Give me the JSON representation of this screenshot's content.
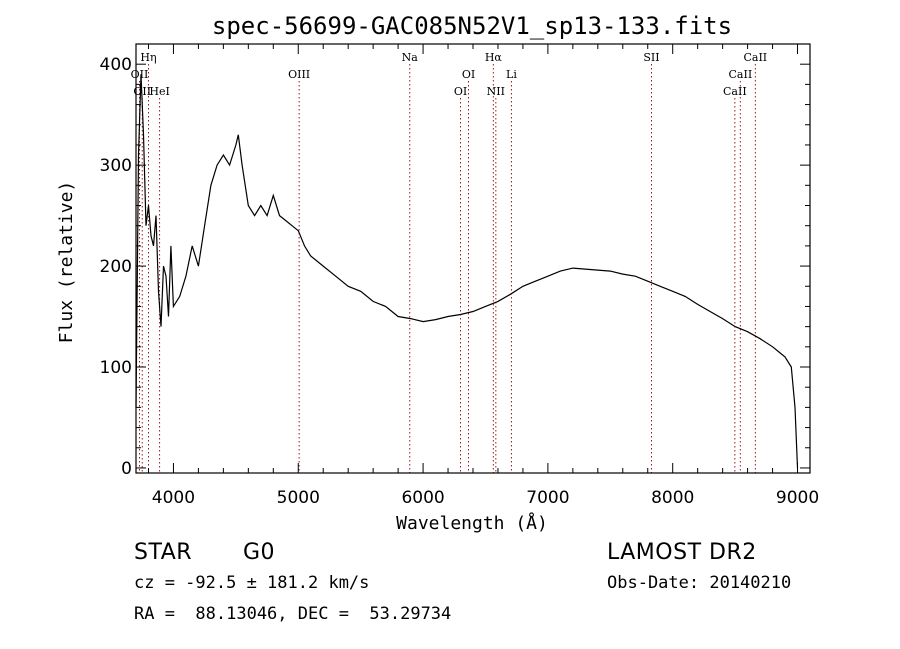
{
  "chart_data": {
    "type": "line",
    "title": "spec-56699-GAC085N52V1_sp13-133.fits",
    "xlabel": "Wavelength (Å)",
    "ylabel": "Flux (relative)",
    "xlim": [
      3700,
      9100
    ],
    "ylim": [
      -5,
      420
    ],
    "xticks": [
      4000,
      5000,
      6000,
      7000,
      8000,
      9000
    ],
    "yticks": [
      0,
      100,
      200,
      300,
      400
    ],
    "grid": false,
    "series": [
      {
        "x": [
          3700,
          3720,
          3740,
          3760,
          3780,
          3800,
          3820,
          3840,
          3860,
          3880,
          3900,
          3920,
          3940,
          3960,
          3980,
          4000,
          4050,
          4100,
          4150,
          4200,
          4250,
          4300,
          4350,
          4400,
          4450,
          4500,
          4520,
          4550,
          4600,
          4650,
          4700,
          4750,
          4800,
          4850,
          4900,
          4950,
          5000,
          5050,
          5100,
          5200,
          5300,
          5400,
          5500,
          5600,
          5700,
          5800,
          5900,
          6000,
          6100,
          6200,
          6300,
          6400,
          6500,
          6600,
          6700,
          6800,
          6900,
          7000,
          7100,
          7200,
          7300,
          7400,
          7500,
          7600,
          7700,
          7800,
          7900,
          8000,
          8100,
          8200,
          8300,
          8400,
          8500,
          8600,
          8700,
          8800,
          8850,
          8900,
          8950,
          8980,
          9000
        ],
        "y": [
          60,
          310,
          390,
          330,
          240,
          260,
          230,
          220,
          250,
          175,
          140,
          200,
          190,
          150,
          220,
          160,
          170,
          190,
          220,
          200,
          240,
          280,
          300,
          310,
          300,
          320,
          330,
          300,
          260,
          250,
          260,
          250,
          270,
          250,
          245,
          240,
          235,
          220,
          210,
          200,
          190,
          180,
          175,
          165,
          160,
          150,
          148,
          145,
          147,
          150,
          152,
          155,
          160,
          165,
          172,
          180,
          185,
          190,
          195,
          198,
          197,
          196,
          195,
          192,
          190,
          185,
          180,
          175,
          170,
          162,
          155,
          148,
          140,
          135,
          128,
          120,
          115,
          110,
          100,
          60,
          0
        ]
      }
    ],
    "line_labels": [
      {
        "x": 3728,
        "text": "OII",
        "row": 2
      },
      {
        "x": 3750,
        "text": "OII",
        "row": 3
      },
      {
        "x": 3800,
        "text": "Hη",
        "row": 1
      },
      {
        "x": 3889,
        "text": "HeI",
        "row": 3
      },
      {
        "x": 5007,
        "text": "OIII",
        "row": 2
      },
      {
        "x": 5893,
        "text": "Na",
        "row": 1
      },
      {
        "x": 6300,
        "text": "OI",
        "row": 3
      },
      {
        "x": 6364,
        "text": "OI",
        "row": 2
      },
      {
        "x": 6563,
        "text": "Hα",
        "row": 1
      },
      {
        "x": 6583,
        "text": "NII",
        "row": 3
      },
      {
        "x": 6708,
        "text": "Li",
        "row": 2
      },
      {
        "x": 7830,
        "text": "SII",
        "row": 1
      },
      {
        "x": 8498,
        "text": "CaII",
        "row": 3
      },
      {
        "x": 8542,
        "text": "CaII",
        "row": 2
      },
      {
        "x": 8662,
        "text": "CaII",
        "row": 1
      }
    ]
  },
  "info": {
    "object_class": "STAR",
    "subclass": "G0",
    "survey": "LAMOST DR2",
    "cz": "cz = -92.5 ± 181.2 km/s",
    "obs_date": "Obs-Date: 20140210",
    "coords": "RA =  88.13046, DEC =  53.29734"
  },
  "colors": {
    "spectrum": "#000000",
    "line_marker": "#9b1b1b"
  }
}
